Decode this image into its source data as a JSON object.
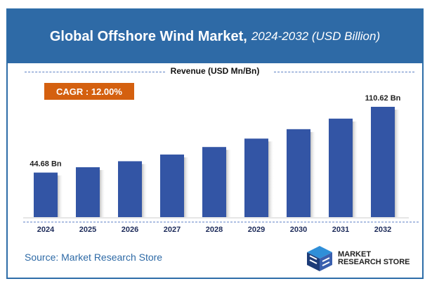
{
  "header": {
    "title": "Global Offshore Wind Market,",
    "subtitle": "2024-2032 (USD Billion)"
  },
  "revenue_label": "Revenue (USD Mn/Bn)",
  "cagr": "CAGR : 12.00%",
  "source": "Source: Market Research Store",
  "logo": {
    "line1": "MARKET",
    "line2": "RESEARCH STORE"
  },
  "colors": {
    "header": "#2e6aa6",
    "bar": "#3355a5",
    "cagr": "#d4600f"
  },
  "chart_data": {
    "type": "bar",
    "categories": [
      "2024",
      "2025",
      "2026",
      "2027",
      "2028",
      "2029",
      "2030",
      "2031",
      "2032"
    ],
    "values": [
      44.68,
      50.04,
      56.05,
      62.78,
      70.31,
      78.75,
      88.2,
      98.78,
      110.62
    ],
    "data_labels": {
      "2024": "44.68 Bn",
      "2032": "110.62 Bn"
    },
    "ylabel": "Revenue (USD Mn/Bn)",
    "grid": false
  }
}
